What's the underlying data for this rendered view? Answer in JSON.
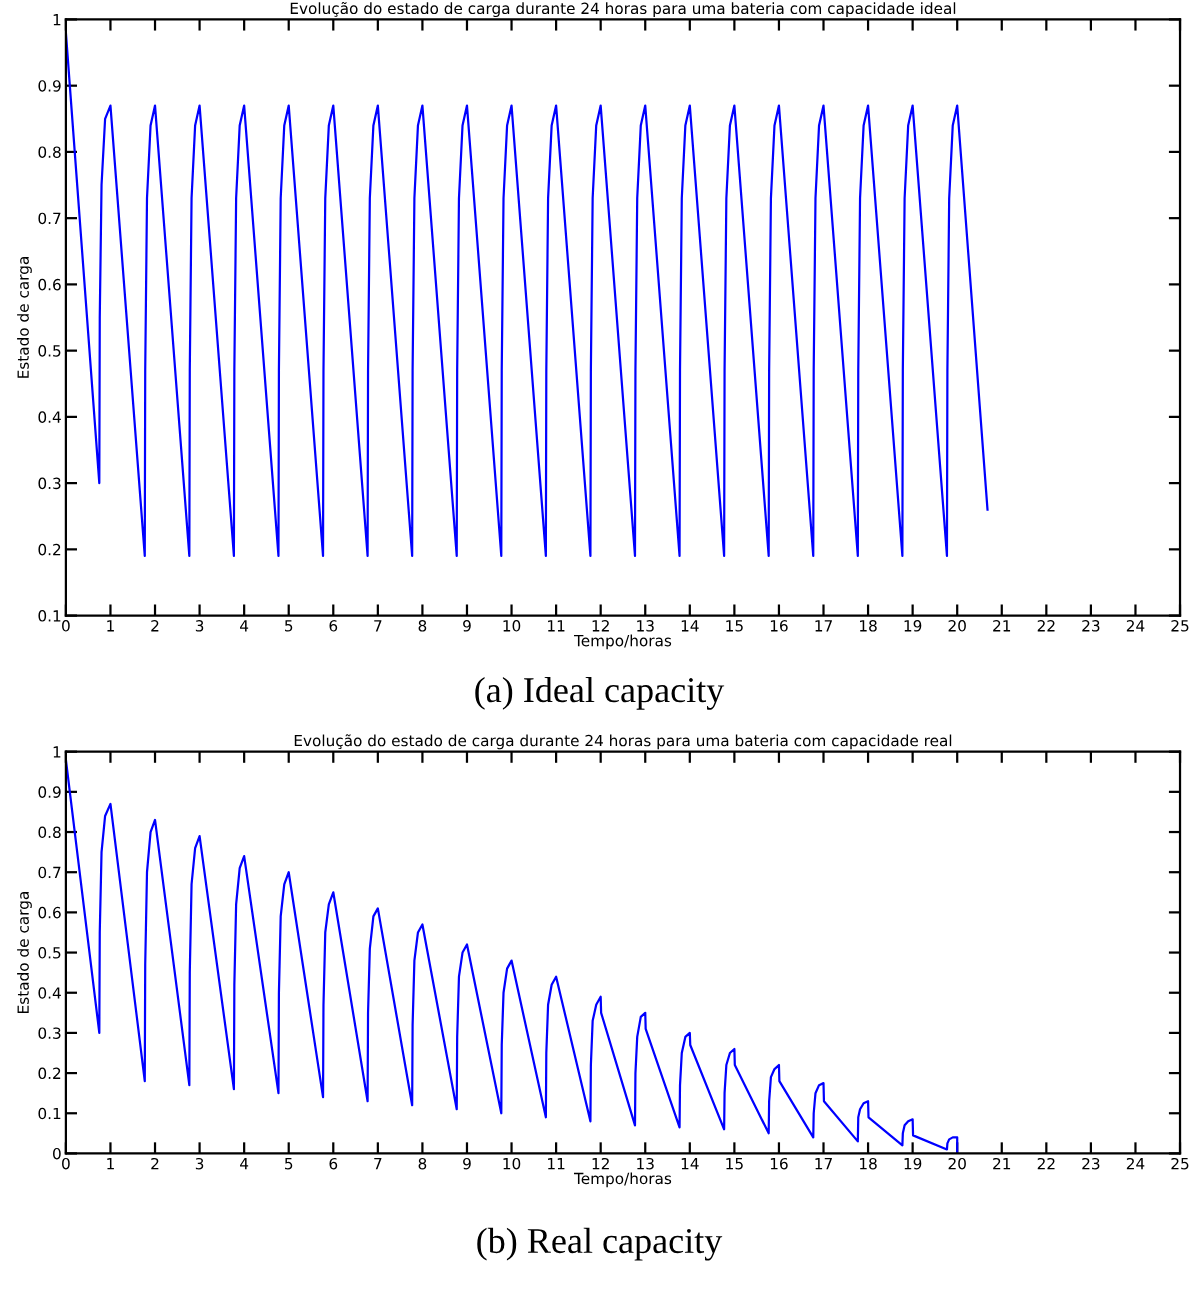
{
  "chart_data": [
    {
      "type": "line",
      "title": "Evolução do estado de carga durante 24 horas para uma bateria com capacidade ideal",
      "xlabel": "Tempo/horas",
      "ylabel": "Estado de carga",
      "annotations": [
        "(a) Ideal capacity"
      ],
      "xlim": [
        0,
        25
      ],
      "xticks": [
        0,
        1,
        2,
        3,
        4,
        5,
        6,
        7,
        8,
        9,
        10,
        11,
        12,
        13,
        14,
        15,
        16,
        17,
        18,
        19,
        20,
        21,
        22,
        23,
        24,
        25
      ],
      "ylim": [
        0.1,
        1
      ],
      "yticks": [
        0.1,
        0.2,
        0.3,
        0.4,
        0.5,
        0.6,
        0.7,
        0.8,
        0.9,
        1
      ],
      "grid": false,
      "marker": "none",
      "line_style": "solid",
      "series": [
        {
          "color": "#0000ff",
          "x": [
            0,
            0.75,
            0.76,
            0.8,
            0.88,
            1,
            1.77,
            1.78,
            1.82,
            1.9,
            2,
            2.77,
            2.78,
            2.82,
            2.9,
            3,
            3.77,
            3.78,
            3.82,
            3.9,
            4,
            4.77,
            4.78,
            4.82,
            4.9,
            5,
            5.77,
            5.78,
            5.82,
            5.9,
            6,
            6.77,
            6.78,
            6.82,
            6.9,
            7,
            7.77,
            7.78,
            7.82,
            7.9,
            8,
            8.77,
            8.78,
            8.82,
            8.9,
            9,
            9.77,
            9.78,
            9.82,
            9.9,
            10,
            10.77,
            10.78,
            10.82,
            10.9,
            11,
            11.77,
            11.78,
            11.82,
            11.9,
            12,
            12.77,
            12.78,
            12.82,
            12.9,
            13,
            13.77,
            13.78,
            13.82,
            13.9,
            14,
            14.77,
            14.78,
            14.82,
            14.9,
            15,
            15.77,
            15.78,
            15.82,
            15.9,
            16,
            16.77,
            16.78,
            16.82,
            16.9,
            17,
            17.77,
            17.78,
            17.82,
            17.9,
            18,
            18.77,
            18.78,
            18.82,
            18.9,
            19,
            19.77,
            19.78,
            19.82,
            19.9,
            20,
            20.68
          ],
          "values": [
            0.98,
            0.3,
            0.55,
            0.75,
            0.85,
            0.87,
            0.19,
            0.47,
            0.73,
            0.84,
            0.87,
            0.19,
            0.47,
            0.73,
            0.84,
            0.87,
            0.19,
            0.47,
            0.73,
            0.84,
            0.87,
            0.19,
            0.47,
            0.73,
            0.84,
            0.87,
            0.19,
            0.47,
            0.73,
            0.84,
            0.87,
            0.19,
            0.47,
            0.73,
            0.84,
            0.87,
            0.19,
            0.47,
            0.73,
            0.84,
            0.87,
            0.19,
            0.47,
            0.73,
            0.84,
            0.87,
            0.19,
            0.47,
            0.73,
            0.84,
            0.87,
            0.19,
            0.47,
            0.73,
            0.84,
            0.87,
            0.19,
            0.47,
            0.73,
            0.84,
            0.87,
            0.19,
            0.47,
            0.73,
            0.84,
            0.87,
            0.19,
            0.47,
            0.73,
            0.84,
            0.87,
            0.19,
            0.47,
            0.73,
            0.84,
            0.87,
            0.19,
            0.47,
            0.73,
            0.84,
            0.87,
            0.19,
            0.47,
            0.73,
            0.84,
            0.87,
            0.19,
            0.47,
            0.73,
            0.84,
            0.87,
            0.19,
            0.47,
            0.73,
            0.84,
            0.87,
            0.19,
            0.47,
            0.73,
            0.84,
            0.87,
            0.26
          ]
        }
      ]
    },
    {
      "type": "line",
      "title": "Evolução do estado de carga durante 24 horas para uma bateria com capacidade real",
      "xlabel": "Tempo/horas",
      "ylabel": "Estado de carga",
      "annotations": [
        "(b) Real capacity"
      ],
      "xlim": [
        0,
        25
      ],
      "xticks": [
        0,
        1,
        2,
        3,
        4,
        5,
        6,
        7,
        8,
        9,
        10,
        11,
        12,
        13,
        14,
        15,
        16,
        17,
        18,
        19,
        20,
        21,
        22,
        23,
        24,
        25
      ],
      "ylim": [
        0,
        1
      ],
      "yticks": [
        0,
        0.1,
        0.2,
        0.3,
        0.4,
        0.5,
        0.6,
        0.7,
        0.8,
        0.9,
        1
      ],
      "grid": false,
      "marker": "none",
      "line_style": "solid",
      "series": [
        {
          "color": "#0000ff",
          "x": [
            0,
            0.75,
            0.76,
            0.8,
            0.88,
            1,
            1.77,
            1.78,
            1.82,
            1.9,
            2,
            2.77,
            2.78,
            2.82,
            2.9,
            3,
            3.77,
            3.78,
            3.82,
            3.9,
            4,
            4.77,
            4.78,
            4.82,
            4.9,
            5,
            5.77,
            5.78,
            5.82,
            5.9,
            6,
            6.77,
            6.78,
            6.82,
            6.9,
            7,
            7.77,
            7.78,
            7.82,
            7.9,
            8,
            8.77,
            8.78,
            8.82,
            8.9,
            9,
            9.77,
            9.78,
            9.82,
            9.9,
            10,
            10.77,
            10.78,
            10.82,
            10.9,
            11,
            11.77,
            11.78,
            11.82,
            11.9,
            12,
            12.01,
            12.77,
            12.78,
            12.82,
            12.9,
            13,
            13.01,
            13.77,
            13.78,
            13.82,
            13.9,
            14,
            14.01,
            14.77,
            14.78,
            14.82,
            14.9,
            15,
            15.01,
            15.77,
            15.78,
            15.82,
            15.9,
            16,
            16.01,
            16.77,
            16.78,
            16.82,
            16.9,
            17,
            17.01,
            17.77,
            17.78,
            17.82,
            17.9,
            18,
            18.01,
            18.77,
            18.78,
            18.82,
            18.9,
            19,
            19.01,
            19.77,
            19.78,
            19.82,
            19.9,
            20,
            20
          ],
          "values": [
            0.98,
            0.3,
            0.55,
            0.75,
            0.84,
            0.87,
            0.18,
            0.47,
            0.7,
            0.8,
            0.83,
            0.17,
            0.45,
            0.67,
            0.76,
            0.79,
            0.16,
            0.42,
            0.62,
            0.71,
            0.74,
            0.15,
            0.4,
            0.59,
            0.67,
            0.7,
            0.14,
            0.37,
            0.55,
            0.62,
            0.65,
            0.13,
            0.35,
            0.51,
            0.59,
            0.61,
            0.12,
            0.32,
            0.48,
            0.55,
            0.57,
            0.11,
            0.29,
            0.44,
            0.5,
            0.52,
            0.1,
            0.27,
            0.4,
            0.46,
            0.48,
            0.09,
            0.25,
            0.37,
            0.42,
            0.44,
            0.08,
            0.22,
            0.33,
            0.37,
            0.39,
            0.35,
            0.07,
            0.2,
            0.29,
            0.34,
            0.35,
            0.31,
            0.065,
            0.17,
            0.25,
            0.29,
            0.3,
            0.27,
            0.06,
            0.15,
            0.22,
            0.25,
            0.26,
            0.22,
            0.05,
            0.13,
            0.19,
            0.21,
            0.22,
            0.18,
            0.04,
            0.1,
            0.15,
            0.17,
            0.175,
            0.13,
            0.03,
            0.09,
            0.11,
            0.125,
            0.13,
            0.09,
            0.02,
            0.05,
            0.07,
            0.08,
            0.085,
            0.045,
            0.01,
            0.025,
            0.035,
            0.04,
            0.04,
            0
          ]
        }
      ]
    }
  ]
}
